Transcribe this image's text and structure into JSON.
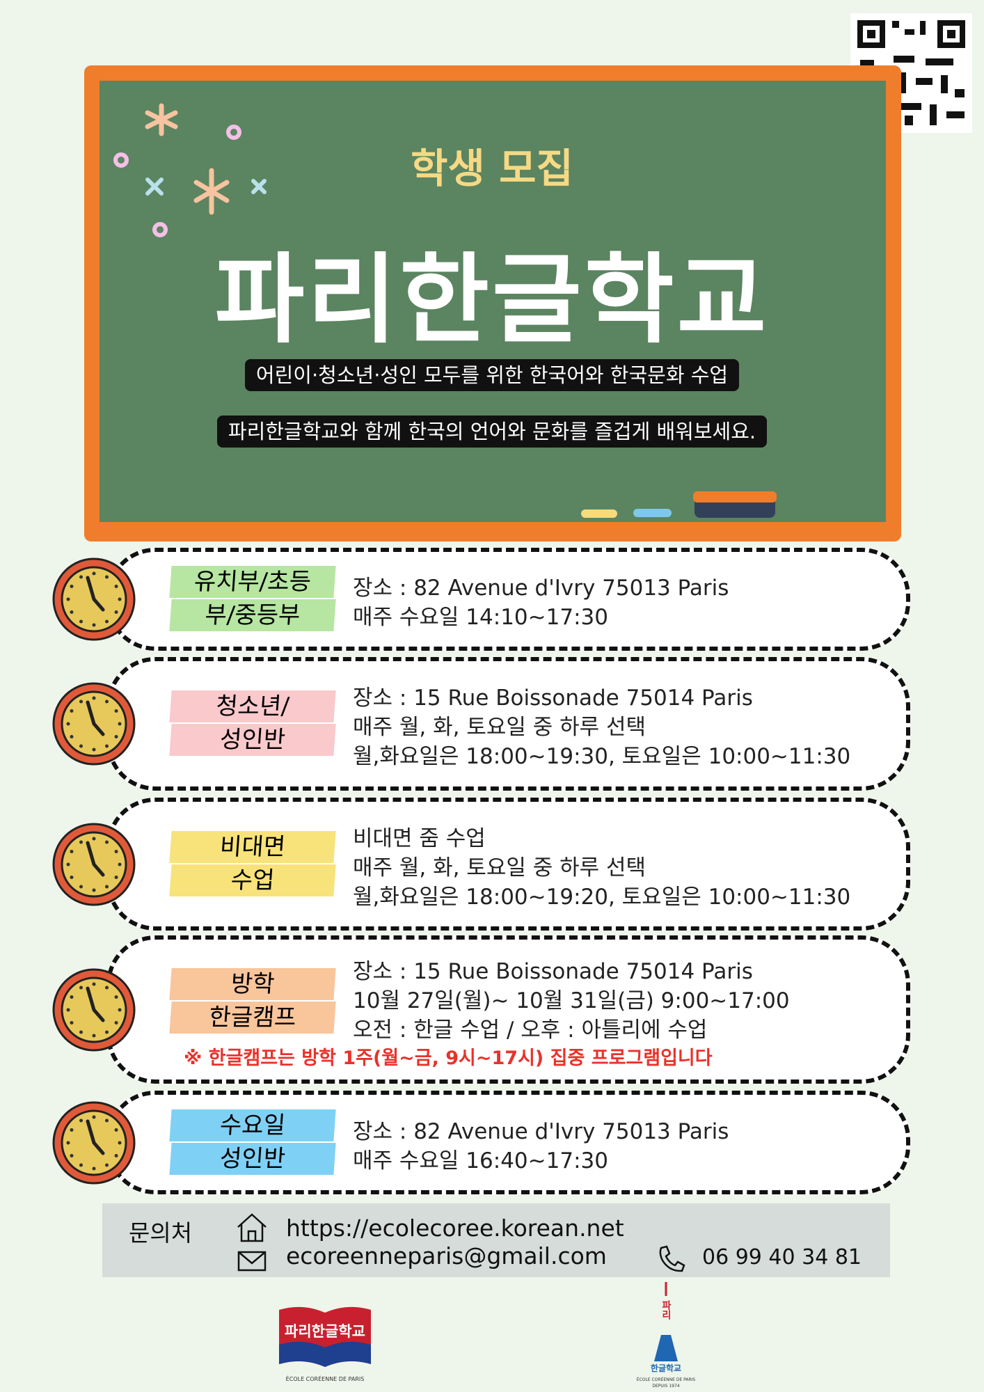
{
  "header": {
    "subtitle": "학생 모집",
    "title": "파리한글학교",
    "taglines": [
      "어린이·청소년·성인 모두를 위한 한국어와 한국문화 수업",
      "파리한글학교와 함께 한국의 언어와 문화를 즐겁게 배워보세요."
    ]
  },
  "sections": [
    {
      "label": [
        "유치부/초등",
        "부/중등부"
      ],
      "lines": [
        "장소 : 82 Avenue d'Ivry 75013 Paris",
        "매주 수요일 14:10~17:30"
      ]
    },
    {
      "label": [
        "청소년/",
        "성인반"
      ],
      "lines": [
        "장소 : 15 Rue Boissonade 75014 Paris",
        "매주 월, 화, 토요일 중 하루 선택",
        "월,화요일은 18:00~19:30, 토요일은 10:00~11:30"
      ]
    },
    {
      "label": [
        "비대면",
        "수업"
      ],
      "lines": [
        "비대면 줌 수업",
        "매주 월, 화, 토요일 중 하루 선택",
        "월,화요일은 18:00~19:20, 토요일은 10:00~11:30"
      ]
    },
    {
      "label": [
        "방학",
        "한글캠프"
      ],
      "lines": [
        "장소 : 15 Rue Boissonade 75014 Paris",
        "10월 27일(월)~ 10월 31일(금) 9:00~17:00",
        "오전 : 한글 수업 / 오후 : 아틀리에 수업"
      ],
      "note": "※ 한글캠프는 방학 1주(월~금, 9시~17시) 집중 프로그램입니다"
    },
    {
      "label": [
        "수요일",
        "성인반"
      ],
      "lines": [
        "장소 : 82 Avenue d'Ivry 75013 Paris",
        "매주 수요일 16:40~17:30"
      ]
    }
  ],
  "contact": {
    "label": "문의처",
    "website": "https://ecolecoree.korean.net",
    "email": "ecoreenneparis@gmail.com",
    "phone": "06 99 40 34 81"
  },
  "logos": [
    {
      "text": "파리한글학교",
      "caption": "ÉCOLE CORÉENNE DE PARIS"
    },
    {
      "text": "한글학교",
      "tower": "파리",
      "caption": "ÉCOLE CORÉENNE DE PARIS",
      "since": "DEPUIS 1974"
    }
  ]
}
